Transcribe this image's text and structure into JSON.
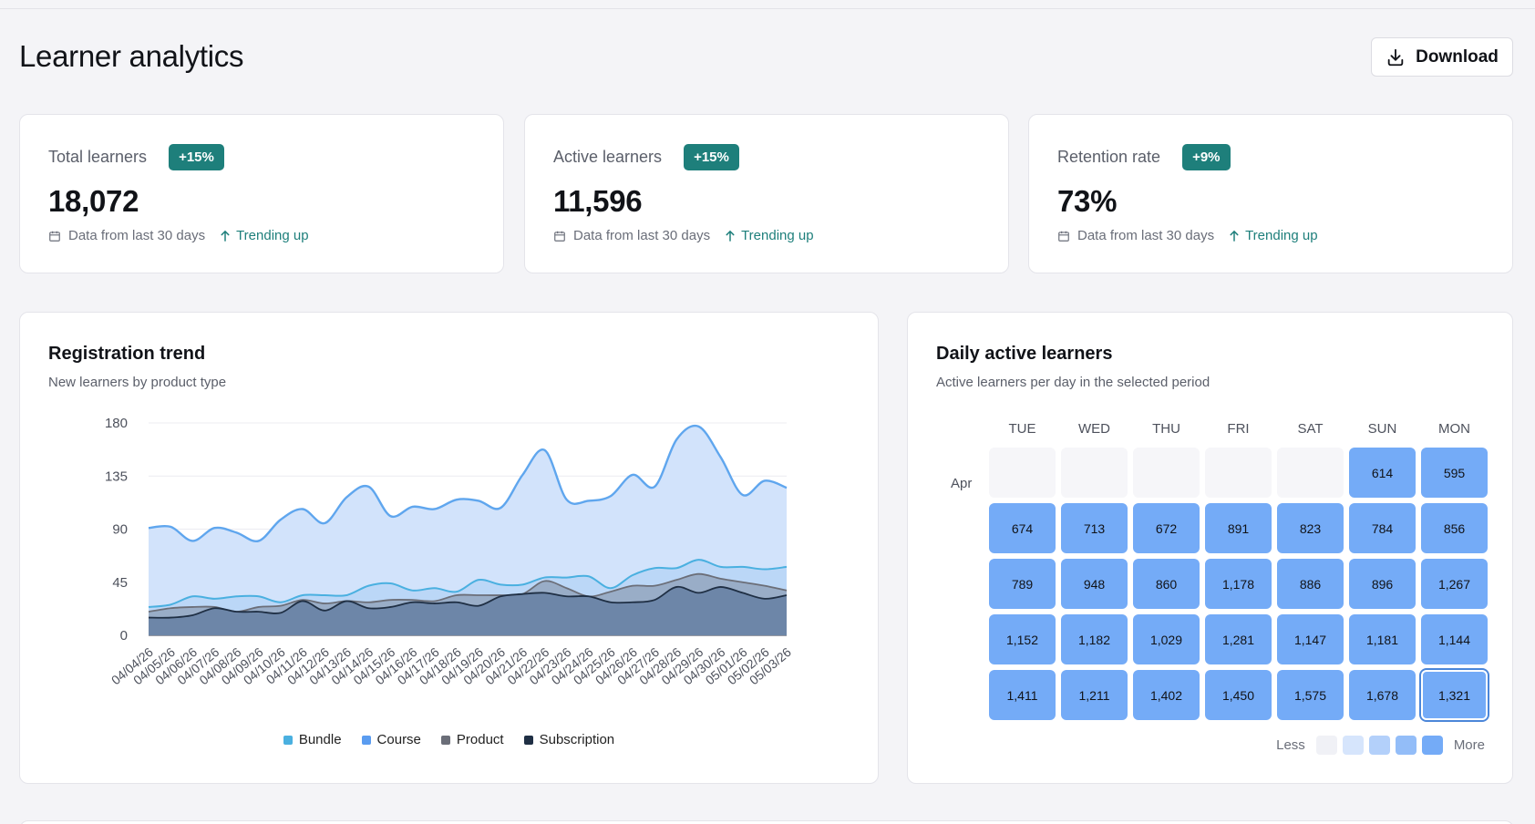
{
  "page": {
    "title": "Learner analytics",
    "download_label": "Download"
  },
  "stats": [
    {
      "label": "Total learners",
      "badge": "+15%",
      "value": "18,072",
      "period": "Data from last 30 days",
      "trend": "Trending up"
    },
    {
      "label": "Active learners",
      "badge": "+15%",
      "value": "11,596",
      "period": "Data from last 30 days",
      "trend": "Trending up"
    },
    {
      "label": "Retention rate",
      "badge": "+9%",
      "value": "73%",
      "period": "Data from last 30 days",
      "trend": "Trending up"
    }
  ],
  "colors": {
    "accent": "#1e7f7b",
    "bundle": "#4ab0e0",
    "course": "#5a9cf0",
    "product": "#6b6e78",
    "subscription": "#1f2f44",
    "heat": "#74abf7"
  },
  "registration": {
    "title": "Registration trend",
    "subtitle": "New learners by product type",
    "chart_data": {
      "type": "area",
      "ylim": [
        0,
        180
      ],
      "yticks": [
        0,
        45,
        90,
        135,
        180
      ],
      "x": [
        "04/04/26",
        "04/05/26",
        "04/06/26",
        "04/07/26",
        "04/08/26",
        "04/09/26",
        "04/10/26",
        "04/11/26",
        "04/12/26",
        "04/13/26",
        "04/14/26",
        "04/15/26",
        "04/16/26",
        "04/17/26",
        "04/18/26",
        "04/19/26",
        "04/20/26",
        "04/21/26",
        "04/22/26",
        "04/23/26",
        "04/24/26",
        "04/25/26",
        "04/26/26",
        "04/27/26",
        "04/28/26",
        "04/29/26",
        "04/30/26",
        "05/01/26",
        "05/02/26",
        "05/03/26"
      ],
      "series": [
        {
          "name": "Bundle",
          "values": [
            91,
            92,
            80,
            91,
            87,
            80,
            98,
            107,
            95,
            117,
            126,
            101,
            109,
            107,
            115,
            114,
            108,
            136,
            157,
            115,
            114,
            118,
            136,
            126,
            166,
            177,
            151,
            119,
            131,
            125
          ]
        },
        {
          "name": "Course",
          "values": [
            24,
            26,
            33,
            31,
            33,
            33,
            28,
            34,
            34,
            34,
            42,
            44,
            38,
            40,
            37,
            47,
            43,
            43,
            49,
            49,
            50,
            40,
            51,
            57,
            57,
            64,
            58,
            58,
            56,
            58
          ]
        },
        {
          "name": "Product",
          "values": [
            20,
            23,
            24,
            24,
            20,
            24,
            25,
            30,
            27,
            29,
            28,
            30,
            30,
            29,
            34,
            34,
            34,
            35,
            46,
            40,
            33,
            37,
            42,
            42,
            47,
            52,
            48,
            45,
            42,
            38
          ]
        },
        {
          "name": "Subscription",
          "values": [
            15,
            15,
            17,
            23,
            20,
            20,
            19,
            29,
            21,
            29,
            23,
            24,
            28,
            27,
            28,
            25,
            33,
            35,
            36,
            33,
            33,
            28,
            28,
            30,
            41,
            36,
            41,
            36,
            31,
            34
          ]
        }
      ]
    }
  },
  "heatmap": {
    "title": "Daily active learners",
    "subtitle": "Active learners per day in the selected period",
    "days": [
      "TUE",
      "WED",
      "THU",
      "FRI",
      "SAT",
      "SUN",
      "MON"
    ],
    "month": "Apr",
    "rows": [
      [
        null,
        null,
        null,
        null,
        null,
        "614",
        "595"
      ],
      [
        "674",
        "713",
        "672",
        "891",
        "823",
        "784",
        "856"
      ],
      [
        "789",
        "948",
        "860",
        "1,178",
        "886",
        "896",
        "1,267"
      ],
      [
        "1,152",
        "1,182",
        "1,029",
        "1,281",
        "1,147",
        "1,181",
        "1,144"
      ],
      [
        "1,411",
        "1,211",
        "1,402",
        "1,450",
        "1,575",
        "1,678",
        "1,321"
      ]
    ],
    "legend": {
      "less": "Less",
      "more": "More"
    }
  }
}
